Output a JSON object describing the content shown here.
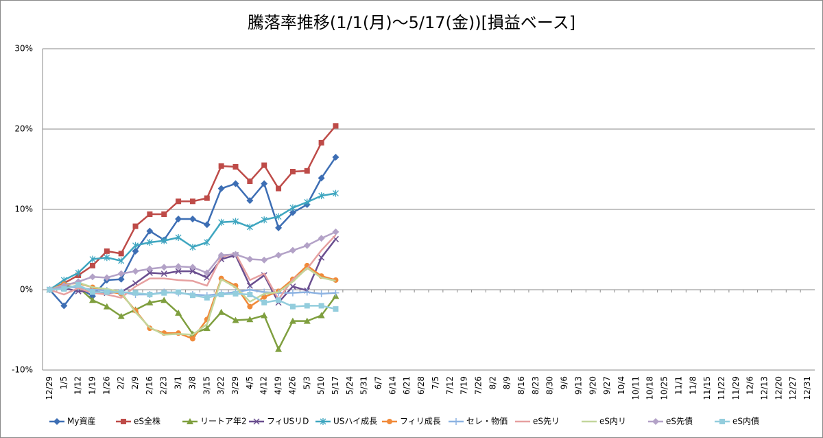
{
  "chart_data": {
    "type": "line",
    "title": "騰落率推移(1/1(月)～5/17(金))[損益ベース]",
    "categories": [
      "12/29",
      "1/5",
      "1/12",
      "1/19",
      "1/26",
      "2/2",
      "2/9",
      "2/16",
      "2/23",
      "3/1",
      "3/8",
      "3/15",
      "3/22",
      "3/29",
      "4/5",
      "4/12",
      "4/19",
      "4/26",
      "5/3",
      "5/10",
      "5/17",
      "5/24",
      "5/31",
      "6/7",
      "6/14",
      "6/21",
      "6/28",
      "7/5",
      "7/12",
      "7/19",
      "7/26",
      "8/2",
      "8/9",
      "8/16",
      "8/23",
      "8/30",
      "9/6",
      "9/13",
      "9/20",
      "9/27",
      "10/4",
      "10/11",
      "10/18",
      "10/25",
      "11/1",
      "11/8",
      "11/15",
      "11/22",
      "11/29",
      "12/6",
      "12/13",
      "12/20",
      "12/27",
      "12/31"
    ],
    "ylim": [
      -10,
      30
    ],
    "yticks": [
      {
        "value": -10,
        "label": "-10%"
      },
      {
        "value": 0,
        "label": "0%"
      },
      {
        "value": 10,
        "label": "10%"
      },
      {
        "value": 20,
        "label": "20%"
      },
      {
        "value": 30,
        "label": "30%"
      }
    ],
    "grid": true,
    "legend": "bottom",
    "series": [
      {
        "name": "My資産",
        "color": "#3d6eb4",
        "marker": "diamond",
        "values": [
          0,
          -2.0,
          0.3,
          -0.8,
          1.2,
          1.3,
          4.8,
          7.3,
          6.2,
          8.8,
          8.8,
          8.1,
          12.6,
          13.2,
          11.1,
          13.2,
          7.7,
          9.6,
          10.6,
          13.9,
          16.5,
          null,
          null,
          null,
          null,
          null,
          null,
          null,
          null,
          null,
          null,
          null,
          null,
          null,
          null,
          null,
          null,
          null,
          null,
          null,
          null,
          null,
          null,
          null,
          null,
          null,
          null,
          null,
          null,
          null,
          null,
          null,
          null,
          null
        ]
      },
      {
        "name": "eS全株",
        "color": "#be4b48",
        "marker": "square",
        "values": [
          0,
          0.8,
          1.8,
          3.0,
          4.8,
          4.5,
          7.9,
          9.4,
          9.4,
          11.0,
          11.0,
          11.4,
          15.4,
          15.3,
          13.5,
          15.5,
          12.6,
          14.7,
          14.8,
          18.3,
          20.4,
          null,
          null,
          null,
          null,
          null,
          null,
          null,
          null,
          null,
          null,
          null,
          null,
          null,
          null,
          null,
          null,
          null,
          null,
          null,
          null,
          null,
          null,
          null,
          null,
          null,
          null,
          null,
          null,
          null,
          null,
          null,
          null,
          null
        ]
      },
      {
        "name": "リートア年2",
        "color": "#7f9f3f",
        "marker": "triangle",
        "values": [
          0,
          0.5,
          0.3,
          -1.3,
          -2.1,
          -3.3,
          -2.5,
          -1.6,
          -1.3,
          -2.9,
          -5.5,
          -4.8,
          -2.8,
          -3.8,
          -3.7,
          -3.2,
          -7.4,
          -3.9,
          -3.9,
          -3.2,
          -0.8,
          null,
          null,
          null,
          null,
          null,
          null,
          null,
          null,
          null,
          null,
          null,
          null,
          null,
          null,
          null,
          null,
          null,
          null,
          null,
          null,
          null,
          null,
          null,
          null,
          null,
          null,
          null,
          null,
          null,
          null,
          null,
          null,
          null
        ]
      },
      {
        "name": "フィUSリD",
        "color": "#6a4e8f",
        "marker": "x",
        "values": [
          0,
          0.2,
          -0.2,
          -0.2,
          -0.4,
          -0.3,
          0.8,
          2.1,
          2.0,
          2.3,
          2.3,
          1.5,
          3.8,
          4.3,
          0.5,
          1.8,
          -1.6,
          0.4,
          -0.1,
          4.0,
          6.3,
          null,
          null,
          null,
          null,
          null,
          null,
          null,
          null,
          null,
          null,
          null,
          null,
          null,
          null,
          null,
          null,
          null,
          null,
          null,
          null,
          null,
          null,
          null,
          null,
          null,
          null,
          null,
          null,
          null,
          null,
          null,
          null,
          null
        ]
      },
      {
        "name": "USハイ成長",
        "color": "#3ea6c0",
        "marker": "star",
        "values": [
          0,
          1.2,
          2.1,
          3.8,
          4.0,
          3.6,
          5.5,
          5.9,
          6.1,
          6.5,
          5.3,
          5.9,
          8.4,
          8.5,
          7.8,
          8.7,
          9.1,
          10.2,
          10.9,
          11.7,
          12.0,
          null,
          null,
          null,
          null,
          null,
          null,
          null,
          null,
          null,
          null,
          null,
          null,
          null,
          null,
          null,
          null,
          null,
          null,
          null,
          null,
          null,
          null,
          null,
          null,
          null,
          null,
          null,
          null,
          null,
          null,
          null,
          null,
          null
        ]
      },
      {
        "name": "フィリ成長",
        "color": "#f08a3a",
        "marker": "circle",
        "values": [
          0,
          0.7,
          0.8,
          0.3,
          -0.2,
          -0.5,
          -2.6,
          -4.8,
          -5.4,
          -5.4,
          -6.1,
          -3.7,
          1.4,
          0.5,
          -2.1,
          -0.9,
          -0.2,
          1.3,
          3.0,
          1.7,
          1.2,
          null,
          null,
          null,
          null,
          null,
          null,
          null,
          null,
          null,
          null,
          null,
          null,
          null,
          null,
          null,
          null,
          null,
          null,
          null,
          null,
          null,
          null,
          null,
          null,
          null,
          null,
          null,
          null,
          null,
          null,
          null,
          null,
          null
        ]
      },
      {
        "name": "セレ・物価",
        "color": "#8db3e2",
        "marker": "plus",
        "values": [
          0,
          0.3,
          0.3,
          0,
          -0.1,
          -0.3,
          -0.6,
          -0.6,
          -0.3,
          -0.4,
          -0.6,
          -0.7,
          -0.5,
          -0.3,
          0,
          -0.3,
          -0.4,
          -0.4,
          -0.3,
          -0.5,
          -0.4,
          null,
          null,
          null,
          null,
          null,
          null,
          null,
          null,
          null,
          null,
          null,
          null,
          null,
          null,
          null,
          null,
          null,
          null,
          null,
          null,
          null,
          null,
          null,
          null,
          null,
          null,
          null,
          null,
          null,
          null,
          null,
          null,
          null
        ]
      },
      {
        "name": "eS先リ",
        "color": "#e6a0a0",
        "marker": "none",
        "values": [
          0,
          -0.6,
          0.2,
          -0.4,
          -0.6,
          -1.0,
          0.4,
          1.4,
          1.4,
          1.2,
          1.1,
          0.5,
          4.1,
          4.5,
          1.2,
          2.0,
          -1.2,
          1.3,
          2.6,
          4.9,
          6.8,
          null,
          null,
          null,
          null,
          null,
          null,
          null,
          null,
          null,
          null,
          null,
          null,
          null,
          null,
          null,
          null,
          null,
          null,
          null,
          null,
          null,
          null,
          null,
          null,
          null,
          null,
          null,
          null,
          null,
          null,
          null,
          null,
          null
        ]
      },
      {
        "name": "eS内リ",
        "color": "#c3d69b",
        "marker": "none",
        "values": [
          0,
          0.6,
          0.9,
          0.3,
          0.1,
          -0.3,
          -2.8,
          -4.7,
          -5.6,
          -5.5,
          -5.6,
          -4.3,
          1.3,
          0.3,
          -1.5,
          -0.5,
          -0.3,
          1.0,
          2.7,
          1.5,
          1.1,
          null,
          null,
          null,
          null,
          null,
          null,
          null,
          null,
          null,
          null,
          null,
          null,
          null,
          null,
          null,
          null,
          null,
          null,
          null,
          null,
          null,
          null,
          null,
          null,
          null,
          null,
          null,
          null,
          null,
          null,
          null,
          null,
          null
        ]
      },
      {
        "name": "eS先債",
        "color": "#b3a2c7",
        "marker": "diamond",
        "values": [
          0,
          0.5,
          1.0,
          1.6,
          1.5,
          2.0,
          2.3,
          2.6,
          2.8,
          2.9,
          2.8,
          2.1,
          4.3,
          4.4,
          3.8,
          3.7,
          4.3,
          4.9,
          5.5,
          6.4,
          7.2,
          null,
          null,
          null,
          null,
          null,
          null,
          null,
          null,
          null,
          null,
          null,
          null,
          null,
          null,
          null,
          null,
          null,
          null,
          null,
          null,
          null,
          null,
          null,
          null,
          null,
          null,
          null,
          null,
          null,
          null,
          null,
          null,
          null
        ]
      },
      {
        "name": "eS内債",
        "color": "#93cddd",
        "marker": "square",
        "values": [
          0,
          0.1,
          0.6,
          -0.3,
          -0.3,
          -0.3,
          -0.4,
          -0.6,
          -0.4,
          -0.3,
          -0.7,
          -1.0,
          -0.6,
          -0.5,
          -0.6,
          -1.6,
          -1.3,
          -2.1,
          -2.0,
          -2.0,
          -2.4,
          null,
          null,
          null,
          null,
          null,
          null,
          null,
          null,
          null,
          null,
          null,
          null,
          null,
          null,
          null,
          null,
          null,
          null,
          null,
          null,
          null,
          null,
          null,
          null,
          null,
          null,
          null,
          null,
          null,
          null,
          null,
          null,
          null
        ]
      }
    ]
  }
}
